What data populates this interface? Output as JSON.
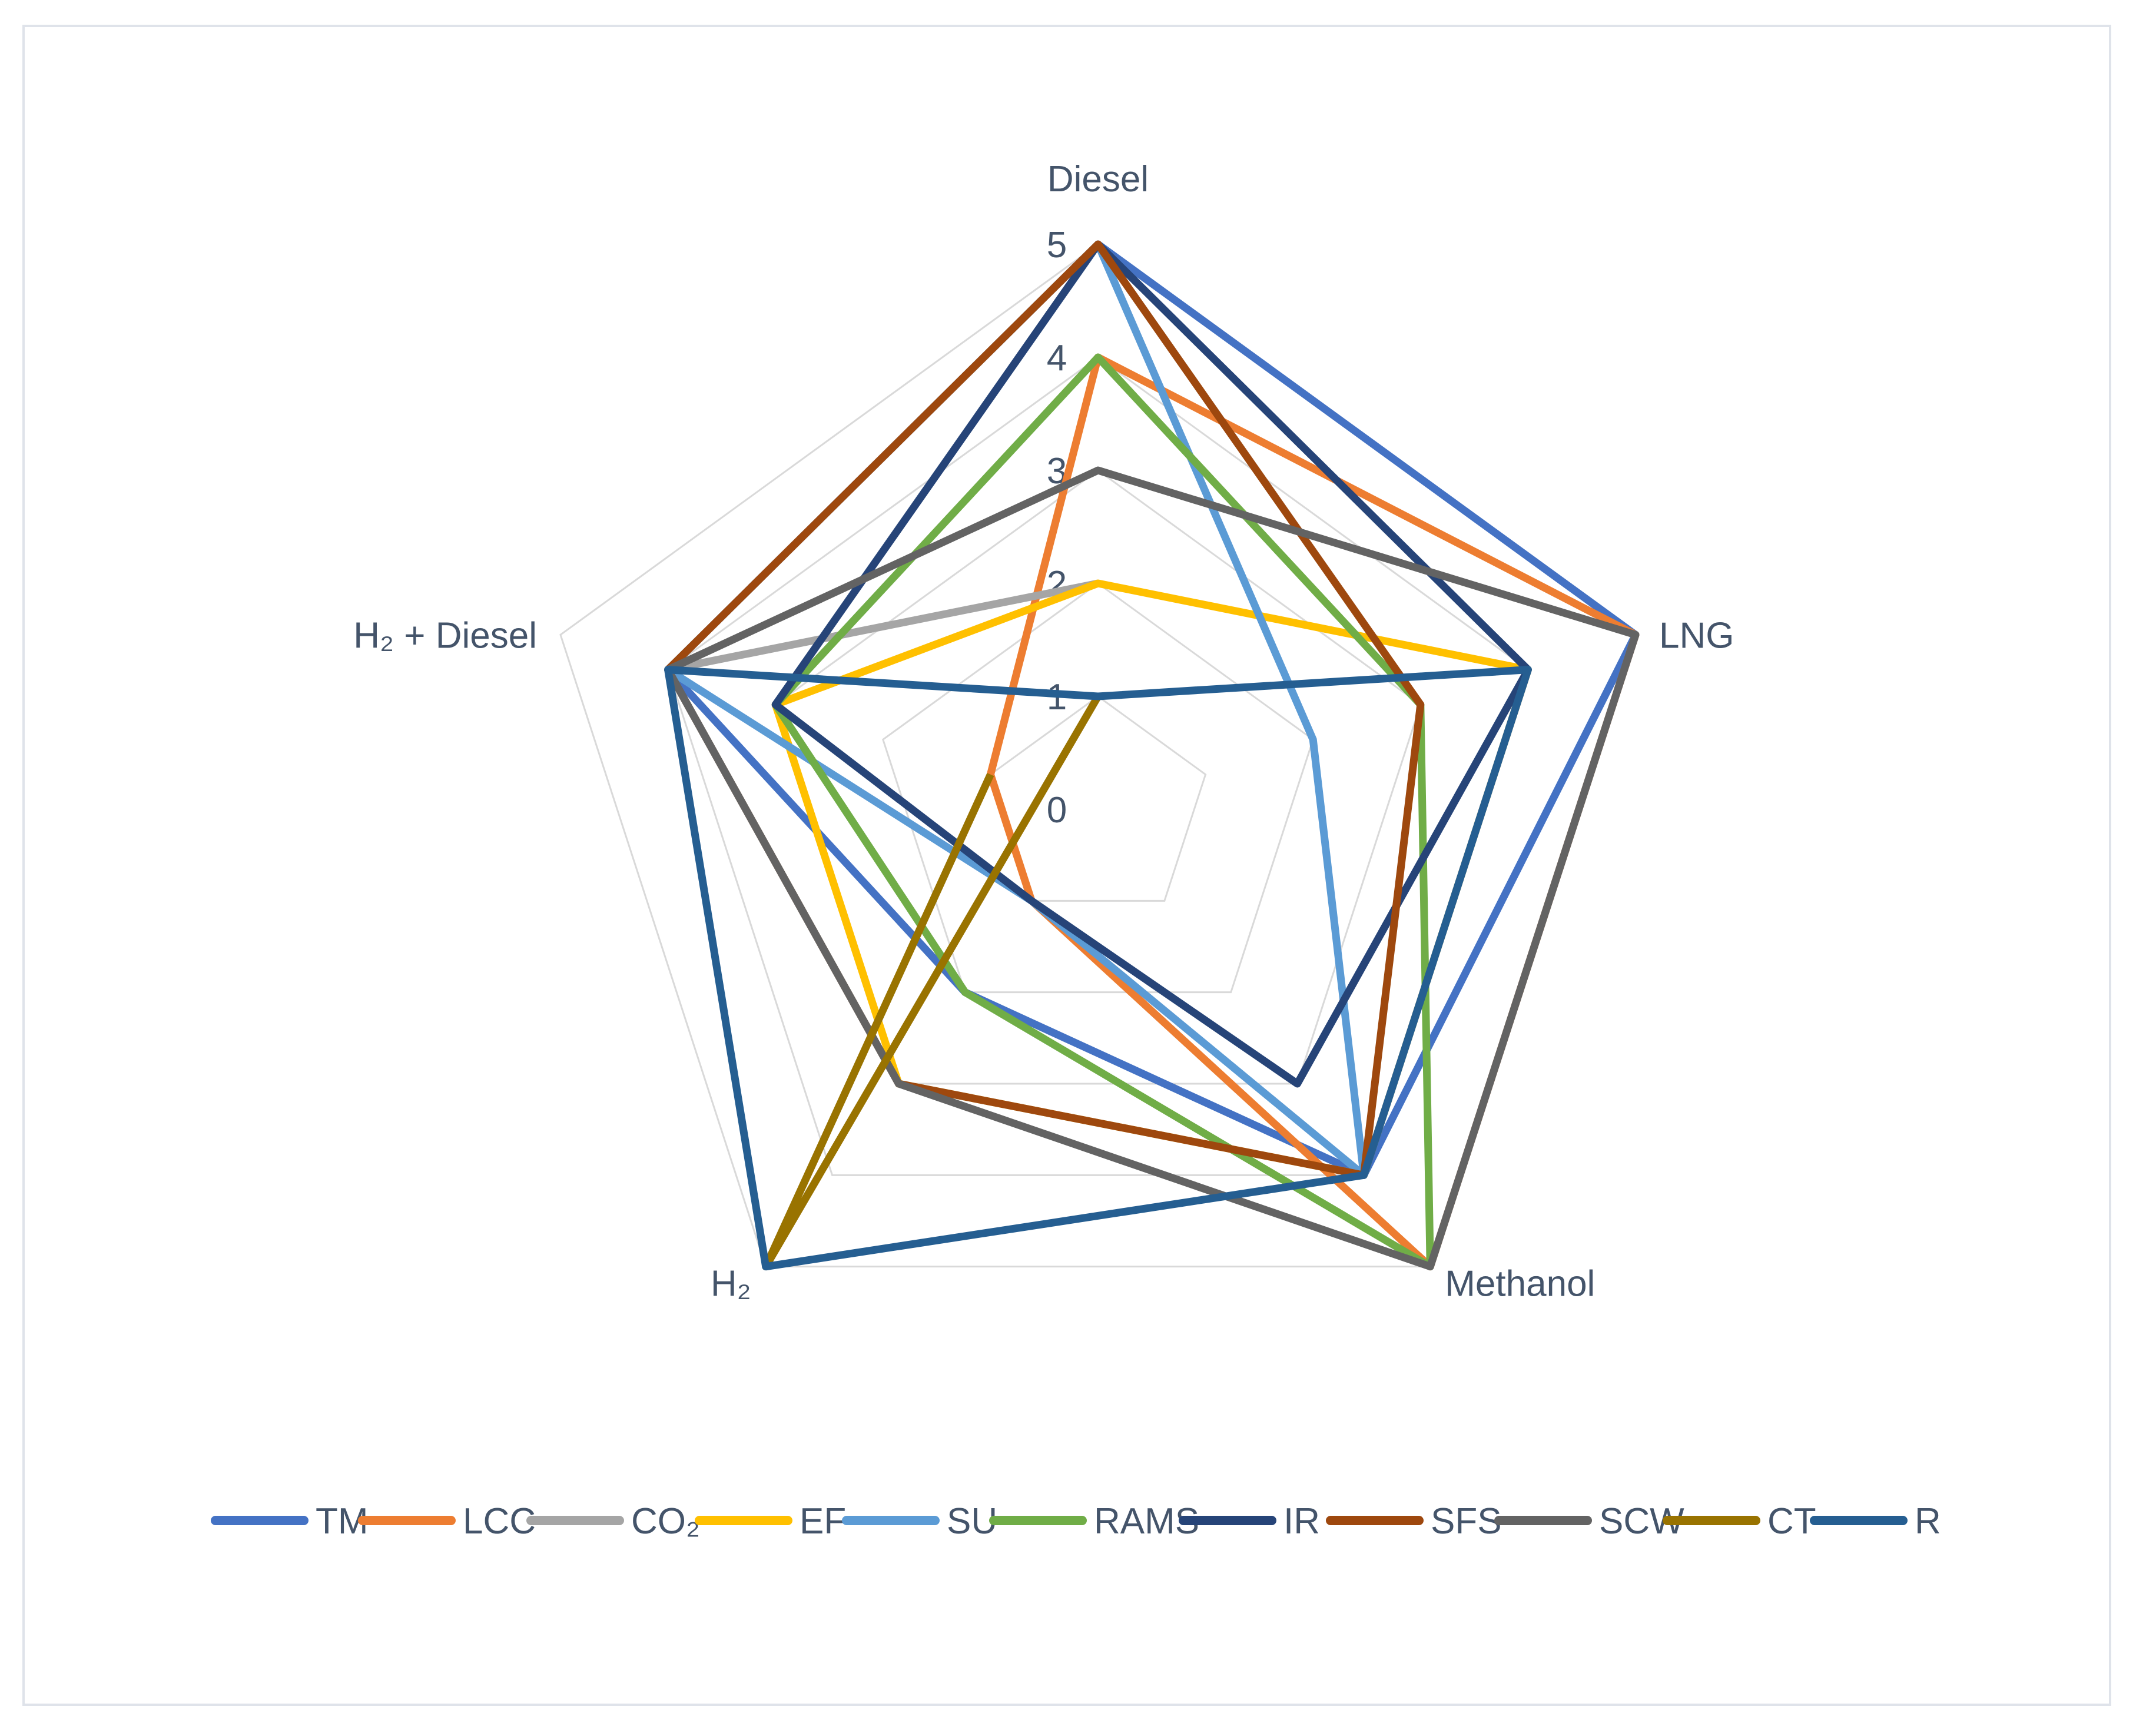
{
  "chart_data": {
    "type": "radar",
    "title": "",
    "axes": [
      "Diesel",
      "LNG",
      "Methanol",
      "H₂",
      "H₂  + Diesel"
    ],
    "range": [
      0,
      5
    ],
    "ticks": [
      "0",
      "1",
      "2",
      "3",
      "4",
      "5"
    ],
    "grid": true,
    "legend_position": "bottom",
    "series": [
      {
        "name": "TM",
        "color": "#4472c4",
        "values": [
          5,
          5,
          4,
          2,
          4
        ]
      },
      {
        "name": "LCC",
        "color": "#ed7d31",
        "values": [
          4,
          5,
          5,
          1,
          1
        ]
      },
      {
        "name": "CO₂",
        "color": "#a5a5a5",
        "values": [
          2,
          null,
          null,
          null,
          4
        ]
      },
      {
        "name": "EF",
        "color": "#ffc000",
        "values": [
          2,
          4,
          4,
          3,
          3
        ]
      },
      {
        "name": "SU",
        "color": "#5b9bd5",
        "values": [
          5,
          2,
          4,
          1,
          4
        ]
      },
      {
        "name": "RAMS",
        "color": "#70ad47",
        "values": [
          4,
          3,
          5,
          2,
          3
        ]
      },
      {
        "name": "IR",
        "color": "#264478",
        "values": [
          5,
          4,
          3,
          1,
          3
        ]
      },
      {
        "name": "SFS",
        "color": "#9e480e",
        "values": [
          5,
          3,
          4,
          3,
          4
        ]
      },
      {
        "name": "SCW",
        "color": "#636363",
        "values": [
          3,
          5,
          5,
          3,
          4
        ]
      },
      {
        "name": "CT",
        "color": "#997300",
        "values": [
          1,
          null,
          null,
          5,
          1
        ]
      },
      {
        "name": "R",
        "color": "#255e91",
        "values": [
          1,
          4,
          4,
          5,
          4
        ]
      }
    ]
  }
}
